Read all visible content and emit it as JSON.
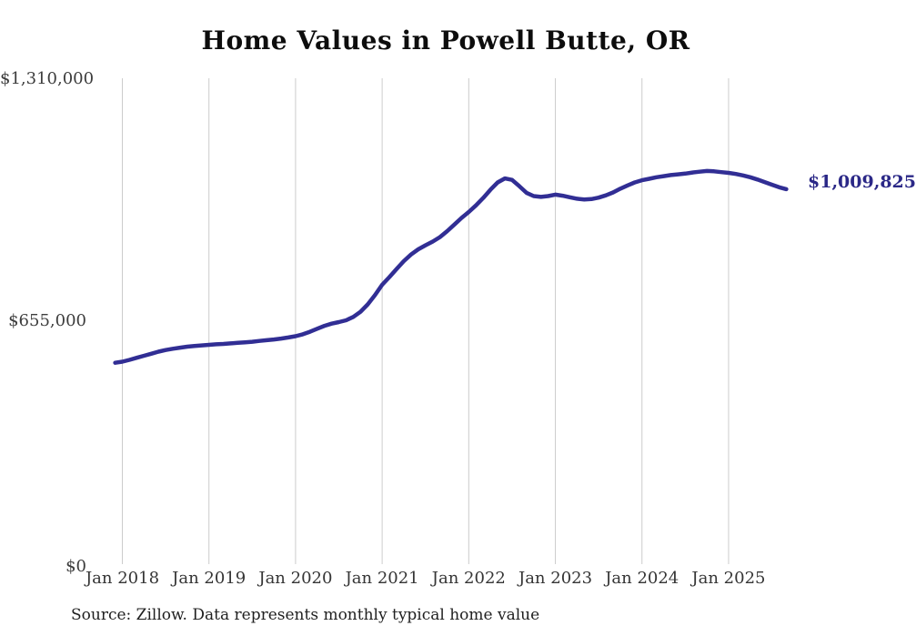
{
  "source_note": "Source: Zillow. Data represents monthly typical home value",
  "colors": {
    "line": "#312e94",
    "end_label": "#2b2887",
    "grid": "#cccccc",
    "axis_text": "#3d3d3d",
    "title_text": "#0d0d0d",
    "background": "#ffffff"
  },
  "y_axis": {
    "ticks": [
      {
        "label": "$1,310,000",
        "value": 1310000
      },
      {
        "label": "$655,000",
        "value": 655000
      },
      {
        "label": "$0",
        "value": 0
      }
    ]
  },
  "x_axis": {
    "ticks": [
      {
        "label": "Jan 2018",
        "month": "2018-01"
      },
      {
        "label": "Jan 2019",
        "month": "2019-01"
      },
      {
        "label": "Jan 2020",
        "month": "2020-01"
      },
      {
        "label": "Jan 2021",
        "month": "2021-01"
      },
      {
        "label": "Jan 2022",
        "month": "2022-01"
      },
      {
        "label": "Jan 2023",
        "month": "2023-01"
      },
      {
        "label": "Jan 2024",
        "month": "2024-01"
      },
      {
        "label": "Jan 2025",
        "month": "2025-01"
      }
    ]
  },
  "chart_data": {
    "type": "line",
    "title": "Home Values in Powell Butte, OR",
    "series_name": "Monthly typical home value",
    "last_point_label": "$1,009,825",
    "last_point_value": 1009825,
    "ylim": [
      0,
      1310000
    ],
    "grid": "vertical",
    "legend": "none",
    "x": [
      "2017-12",
      "2018-01",
      "2018-02",
      "2018-03",
      "2018-04",
      "2018-05",
      "2018-06",
      "2018-07",
      "2018-08",
      "2018-09",
      "2018-10",
      "2018-11",
      "2018-12",
      "2019-01",
      "2019-02",
      "2019-03",
      "2019-04",
      "2019-05",
      "2019-06",
      "2019-07",
      "2019-08",
      "2019-09",
      "2019-10",
      "2019-11",
      "2019-12",
      "2020-01",
      "2020-02",
      "2020-03",
      "2020-04",
      "2020-05",
      "2020-06",
      "2020-07",
      "2020-08",
      "2020-09",
      "2020-10",
      "2020-11",
      "2020-12",
      "2021-01",
      "2021-02",
      "2021-03",
      "2021-04",
      "2021-05",
      "2021-06",
      "2021-07",
      "2021-08",
      "2021-09",
      "2021-10",
      "2021-11",
      "2021-12",
      "2022-01",
      "2022-02",
      "2022-03",
      "2022-04",
      "2022-05",
      "2022-06",
      "2022-07",
      "2022-08",
      "2022-09",
      "2022-10",
      "2022-11",
      "2022-12",
      "2023-01",
      "2023-02",
      "2023-03",
      "2023-04",
      "2023-05",
      "2023-06",
      "2023-07",
      "2023-08",
      "2023-09",
      "2023-10",
      "2023-11",
      "2023-12",
      "2024-01",
      "2024-02",
      "2024-03",
      "2024-04",
      "2024-05",
      "2024-06",
      "2024-07",
      "2024-08",
      "2024-09",
      "2024-10",
      "2024-11",
      "2024-12",
      "2025-01",
      "2025-02",
      "2025-03",
      "2025-04",
      "2025-05",
      "2025-06",
      "2025-07",
      "2025-08",
      "2025-09"
    ],
    "values": [
      540000,
      543000,
      548000,
      553500,
      559000,
      564500,
      570000,
      574500,
      578000,
      581000,
      583500,
      585500,
      587000,
      588500,
      590000,
      591000,
      592500,
      594000,
      595500,
      597000,
      599000,
      601000,
      603000,
      605500,
      608500,
      612000,
      617000,
      624000,
      632000,
      640000,
      646000,
      650000,
      655000,
      664000,
      678000,
      698000,
      723000,
      751000,
      772000,
      794000,
      815000,
      833000,
      847000,
      858000,
      868000,
      880000,
      896000,
      914000,
      932000,
      948000,
      966000,
      986000,
      1008000,
      1028000,
      1039000,
      1035000,
      1018000,
      1000000,
      991000,
      989000,
      991000,
      995000,
      992000,
      988000,
      984000,
      982000,
      983000,
      987000,
      993000,
      1001000,
      1011000,
      1020000,
      1028000,
      1034000,
      1038000,
      1042000,
      1045000,
      1048000,
      1050000,
      1052000,
      1055000,
      1057000,
      1059000,
      1058000,
      1056000,
      1054000,
      1051000,
      1047000,
      1042000,
      1036000,
      1029000,
      1022000,
      1015000,
      1009825
    ]
  }
}
